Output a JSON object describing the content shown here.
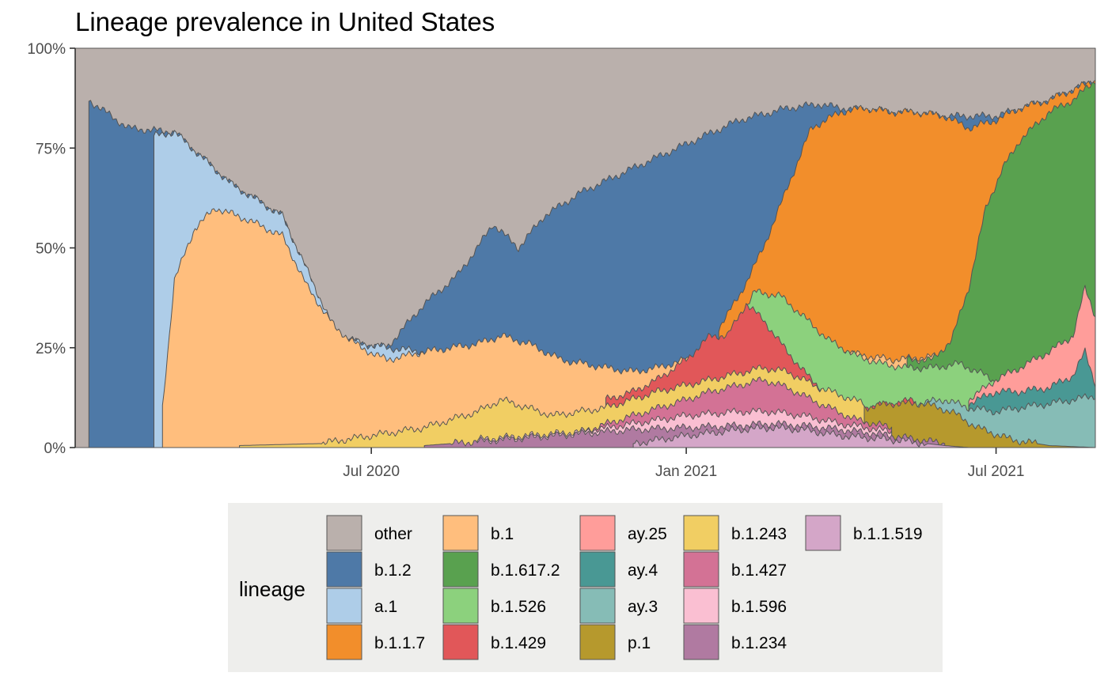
{
  "chart_data": {
    "type": "area",
    "title": "Lineage prevalence in United States",
    "xlabel": "",
    "ylabel": "",
    "x_start": "2020-01-10",
    "x_end": "2021-08-28",
    "x_ticks": [
      {
        "date": "2020-07-01",
        "label": "Jul 2020"
      },
      {
        "date": "2021-01-01",
        "label": "Jan 2021"
      },
      {
        "date": "2021-07-01",
        "label": "Jul 2021"
      }
    ],
    "y_ticks": [
      {
        "value": 0,
        "label": "0%"
      },
      {
        "value": 25,
        "label": "25%"
      },
      {
        "value": 50,
        "label": "50%"
      },
      {
        "value": 75,
        "label": "75%"
      },
      {
        "value": 100,
        "label": "100%"
      }
    ],
    "ylim": [
      0,
      100
    ],
    "grid": false,
    "legend_title": "lineage",
    "legend_position": "bottom",
    "series": [
      {
        "name": "other",
        "color": "#bab0ac",
        "points": [
          [
            "2020-01-10",
            100
          ],
          [
            "2021-08-28",
            100
          ]
        ]
      },
      {
        "name": "b.1.2",
        "color": "#4e79a7",
        "points": [
          [
            "2020-01-18",
            87
          ],
          [
            "2020-02-10",
            80
          ],
          [
            "2020-03-08",
            79
          ],
          [
            "2020-04-10",
            66
          ],
          [
            "2020-05-10",
            58
          ],
          [
            "2020-06-10",
            28
          ],
          [
            "2020-06-25",
            26
          ],
          [
            "2020-07-10",
            25
          ],
          [
            "2020-08-01",
            36
          ],
          [
            "2020-08-20",
            43
          ],
          [
            "2020-09-01",
            50
          ],
          [
            "2020-09-10",
            56
          ],
          [
            "2020-09-25",
            50
          ],
          [
            "2020-10-10",
            58
          ],
          [
            "2020-11-01",
            64
          ],
          [
            "2020-12-01",
            70
          ],
          [
            "2021-01-01",
            76
          ],
          [
            "2021-02-01",
            82
          ],
          [
            "2021-03-01",
            85
          ],
          [
            "2021-03-20",
            86
          ],
          [
            "2021-04-01",
            85
          ],
          [
            "2021-05-01",
            84
          ],
          [
            "2021-06-01",
            83
          ],
          [
            "2021-07-01",
            83
          ],
          [
            "2021-08-01",
            87
          ],
          [
            "2021-08-28",
            92
          ]
        ]
      },
      {
        "name": "a.1",
        "color": "#aecde8",
        "points": [
          [
            "2020-02-25",
            78
          ],
          [
            "2020-03-08",
            79
          ],
          [
            "2020-04-10",
            66
          ],
          [
            "2020-05-10",
            58
          ],
          [
            "2020-06-10",
            29
          ],
          [
            "2020-06-25",
            26
          ],
          [
            "2020-07-10",
            25
          ],
          [
            "2020-08-01",
            24
          ],
          [
            "2020-09-01",
            24
          ]
        ]
      },
      {
        "name": "b.1.1.7",
        "color": "#f28e2b",
        "points": [
          [
            "2021-01-20",
            30
          ],
          [
            "2021-02-01",
            38
          ],
          [
            "2021-02-15",
            50
          ],
          [
            "2021-03-01",
            65
          ],
          [
            "2021-03-15",
            80
          ],
          [
            "2021-04-01",
            84
          ],
          [
            "2021-04-15",
            85
          ],
          [
            "2021-05-01",
            84
          ],
          [
            "2021-05-15",
            84
          ],
          [
            "2021-06-01",
            83
          ],
          [
            "2021-06-15",
            80
          ],
          [
            "2021-07-01",
            82
          ],
          [
            "2021-07-15",
            85
          ],
          [
            "2021-08-01",
            87
          ],
          [
            "2021-08-28",
            92
          ]
        ]
      },
      {
        "name": "b.1",
        "color": "#ffbe7d",
        "points": [
          [
            "2020-03-01",
            10
          ],
          [
            "2020-03-08",
            42
          ],
          [
            "2020-03-20",
            55
          ],
          [
            "2020-04-01",
            60
          ],
          [
            "2020-04-20",
            57
          ],
          [
            "2020-05-10",
            53
          ],
          [
            "2020-05-25",
            40
          ],
          [
            "2020-06-10",
            30
          ],
          [
            "2020-06-25",
            25
          ],
          [
            "2020-07-10",
            22
          ],
          [
            "2020-08-01",
            24
          ],
          [
            "2020-09-01",
            26
          ],
          [
            "2020-09-15",
            28
          ],
          [
            "2020-10-01",
            26
          ],
          [
            "2020-10-20",
            22
          ],
          [
            "2020-11-15",
            20
          ],
          [
            "2020-12-01",
            19
          ],
          [
            "2020-12-15",
            20
          ],
          [
            "2021-01-01",
            22
          ],
          [
            "2021-02-01",
            28
          ],
          [
            "2021-02-15",
            35
          ],
          [
            "2021-03-01",
            33
          ],
          [
            "2021-04-01",
            24
          ],
          [
            "2021-05-01",
            22
          ],
          [
            "2021-06-01",
            23
          ]
        ]
      },
      {
        "name": "b.1.617.2",
        "color": "#59a14f",
        "points": [
          [
            "2021-05-10",
            22
          ],
          [
            "2021-05-25",
            22
          ],
          [
            "2021-06-05",
            27
          ],
          [
            "2021-06-15",
            40
          ],
          [
            "2021-06-25",
            60
          ],
          [
            "2021-07-05",
            70
          ],
          [
            "2021-07-15",
            77
          ],
          [
            "2021-08-01",
            84
          ],
          [
            "2021-08-15",
            87
          ],
          [
            "2021-08-28",
            92
          ]
        ]
      },
      {
        "name": "b.1.526",
        "color": "#8cd17d",
        "points": [
          [
            "2021-01-25",
            27
          ],
          [
            "2021-02-10",
            39
          ],
          [
            "2021-02-25",
            38
          ],
          [
            "2021-03-10",
            33
          ],
          [
            "2021-03-25",
            27
          ],
          [
            "2021-04-10",
            23
          ],
          [
            "2021-04-25",
            21
          ],
          [
            "2021-05-10",
            20
          ],
          [
            "2021-05-25",
            20
          ],
          [
            "2021-06-10",
            21
          ],
          [
            "2021-06-25",
            18
          ],
          [
            "2021-07-10",
            14
          ]
        ]
      },
      {
        "name": "b.1.429",
        "color": "#e15759",
        "points": [
          [
            "2020-11-15",
            12
          ],
          [
            "2020-12-01",
            14
          ],
          [
            "2020-12-15",
            17
          ],
          [
            "2021-01-01",
            22
          ],
          [
            "2021-01-15",
            28
          ],
          [
            "2021-01-25",
            28
          ],
          [
            "2021-02-05",
            36
          ],
          [
            "2021-02-15",
            32
          ],
          [
            "2021-03-01",
            24
          ],
          [
            "2021-03-15",
            17
          ],
          [
            "2021-04-01",
            11
          ],
          [
            "2021-04-15",
            10
          ],
          [
            "2021-05-01",
            11
          ],
          [
            "2021-05-15",
            12
          ]
        ]
      },
      {
        "name": "ay.25",
        "color": "#ff9d9a",
        "points": [
          [
            "2021-06-15",
            12
          ],
          [
            "2021-07-01",
            17
          ],
          [
            "2021-07-15",
            20
          ],
          [
            "2021-08-01",
            24
          ],
          [
            "2021-08-15",
            28
          ],
          [
            "2021-08-22",
            40
          ],
          [
            "2021-08-28",
            33
          ]
        ]
      },
      {
        "name": "ay.4",
        "color": "#499894",
        "points": [
          [
            "2021-06-15",
            11
          ],
          [
            "2021-07-01",
            14
          ],
          [
            "2021-07-15",
            14
          ],
          [
            "2021-08-01",
            15
          ],
          [
            "2021-08-15",
            18
          ],
          [
            "2021-08-22",
            24
          ],
          [
            "2021-08-28",
            16
          ]
        ]
      },
      {
        "name": "ay.3",
        "color": "#86bcb6",
        "points": [
          [
            "2021-05-15",
            11
          ],
          [
            "2021-06-01",
            12
          ],
          [
            "2021-06-15",
            10
          ],
          [
            "2021-07-01",
            9
          ],
          [
            "2021-07-15",
            10
          ],
          [
            "2021-08-01",
            11
          ],
          [
            "2021-08-15",
            12
          ],
          [
            "2021-08-28",
            13
          ]
        ]
      },
      {
        "name": "p.1",
        "color": "#b6992d",
        "points": [
          [
            "2021-02-01",
            15
          ],
          [
            "2021-02-20",
            15
          ],
          [
            "2021-03-10",
            13
          ],
          [
            "2021-03-25",
            10
          ],
          [
            "2021-04-15",
            10
          ],
          [
            "2021-05-01",
            11
          ],
          [
            "2021-05-20",
            11
          ],
          [
            "2021-06-05",
            9
          ],
          [
            "2021-06-20",
            5
          ],
          [
            "2021-07-10",
            2
          ],
          [
            "2021-08-01",
            0.5
          ],
          [
            "2021-08-28",
            0
          ]
        ]
      },
      {
        "name": "b.1.243",
        "color": "#f1ce63",
        "points": [
          [
            "2020-04-15",
            0.5
          ],
          [
            "2020-06-01",
            1
          ],
          [
            "2020-07-01",
            3
          ],
          [
            "2020-08-01",
            5
          ],
          [
            "2020-09-01",
            9
          ],
          [
            "2020-09-15",
            12
          ],
          [
            "2020-10-15",
            8
          ],
          [
            "2020-11-15",
            10
          ],
          [
            "2020-12-15",
            14
          ],
          [
            "2021-01-15",
            17
          ],
          [
            "2021-02-15",
            20
          ],
          [
            "2021-03-01",
            19
          ],
          [
            "2021-03-20",
            15
          ],
          [
            "2021-04-15",
            11
          ]
        ]
      },
      {
        "name": "b.1.427",
        "color": "#d37295",
        "points": [
          [
            "2020-11-01",
            4
          ],
          [
            "2020-12-01",
            8
          ],
          [
            "2021-01-01",
            12
          ],
          [
            "2021-01-15",
            14
          ],
          [
            "2021-02-15",
            17
          ],
          [
            "2021-03-01",
            15
          ],
          [
            "2021-03-20",
            11
          ],
          [
            "2021-04-10",
            7
          ],
          [
            "2021-05-01",
            5
          ]
        ]
      },
      {
        "name": "b.1.596",
        "color": "#fabfd2",
        "points": [
          [
            "2020-09-01",
            2
          ],
          [
            "2020-10-01",
            3
          ],
          [
            "2020-11-01",
            4
          ],
          [
            "2020-12-01",
            6
          ],
          [
            "2021-01-01",
            8
          ],
          [
            "2021-02-01",
            9
          ],
          [
            "2021-02-20",
            9
          ],
          [
            "2021-03-10",
            8
          ],
          [
            "2021-04-01",
            6
          ],
          [
            "2021-05-01",
            4
          ]
        ]
      },
      {
        "name": "b.1.234",
        "color": "#b07aa1",
        "points": [
          [
            "2020-08-01",
            0.5
          ],
          [
            "2020-09-01",
            1.5
          ],
          [
            "2020-10-01",
            2.5
          ],
          [
            "2020-11-01",
            3.5
          ],
          [
            "2020-12-01",
            4.5
          ],
          [
            "2021-01-01",
            5
          ],
          [
            "2021-02-01",
            5.5
          ],
          [
            "2021-02-20",
            6
          ],
          [
            "2021-03-10",
            5.5
          ],
          [
            "2021-04-01",
            4.5
          ],
          [
            "2021-05-01",
            3
          ],
          [
            "2021-06-01",
            1
          ]
        ]
      },
      {
        "name": "b.1.1.519",
        "color": "#d4a6c8",
        "points": [
          [
            "2020-12-01",
            1
          ],
          [
            "2021-01-01",
            3
          ],
          [
            "2021-02-01",
            4.5
          ],
          [
            "2021-02-20",
            5
          ],
          [
            "2021-03-10",
            4.5
          ],
          [
            "2021-04-01",
            3
          ],
          [
            "2021-05-01",
            2
          ],
          [
            "2021-06-01",
            0.5
          ],
          [
            "2021-06-15",
            0
          ]
        ]
      }
    ],
    "legend": [
      "other",
      "b.1.2",
      "a.1",
      "b.1.1.7",
      "b.1",
      "b.1.617.2",
      "b.1.526",
      "b.1.429",
      "ay.25",
      "ay.4",
      "ay.3",
      "p.1",
      "b.1.243",
      "b.1.427",
      "b.1.596",
      "b.1.234",
      "b.1.1.519"
    ],
    "legend_bg": "#eeeeec"
  }
}
